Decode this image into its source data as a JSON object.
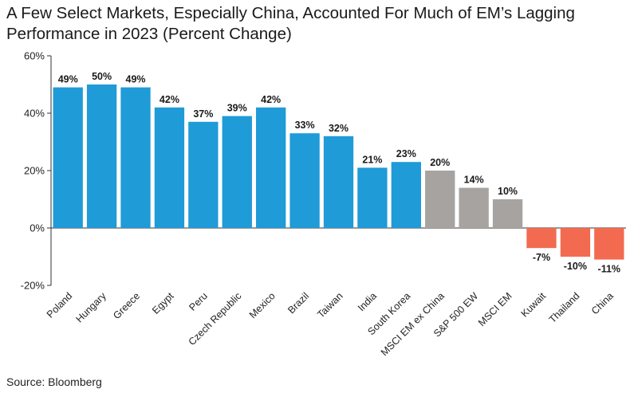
{
  "header": {
    "title": "A Few Select Markets, Especially China, Accounted For Much of EM’s Lagging Performance in 2023 (Percent Change)"
  },
  "footer": {
    "source": "Source: Bloomberg"
  },
  "chart_data": {
    "type": "bar",
    "title": "A Few Select Markets, Especially China, Accounted For Much of EM’s Lagging Performance in 2023 (Percent Change)",
    "xlabel": "",
    "ylabel": "",
    "ylim": [
      -20,
      60
    ],
    "yticks": [
      -20,
      0,
      20,
      40,
      60
    ],
    "ytick_labels": [
      "-20%",
      "0%",
      "20%",
      "40%",
      "60%"
    ],
    "grid": false,
    "categories": [
      "Poland",
      "Hungary",
      "Greece",
      "Egypt",
      "Peru",
      "Czech Republic",
      "Mexico",
      "Brazil",
      "Taiwan",
      "India",
      "South Korea",
      "MSCI EM ex China",
      "S&P 500 EW",
      "MSCI EM",
      "Kuwait",
      "Thailand",
      "China"
    ],
    "values": [
      49,
      50,
      49,
      42,
      37,
      39,
      42,
      33,
      32,
      21,
      23,
      20,
      14,
      10,
      -7,
      -10,
      -11
    ],
    "value_labels": [
      "49%",
      "50%",
      "49%",
      "42%",
      "37%",
      "39%",
      "42%",
      "33%",
      "32%",
      "21%",
      "23%",
      "20%",
      "14%",
      "10%",
      "-7%",
      "-10%",
      "-11%"
    ],
    "colors": [
      "#1f9bd7",
      "#1f9bd7",
      "#1f9bd7",
      "#1f9bd7",
      "#1f9bd7",
      "#1f9bd7",
      "#1f9bd7",
      "#1f9bd7",
      "#1f9bd7",
      "#1f9bd7",
      "#1f9bd7",
      "#a6a3a1",
      "#a6a3a1",
      "#a6a3a1",
      "#f26b50",
      "#f26b50",
      "#f26b50"
    ]
  }
}
